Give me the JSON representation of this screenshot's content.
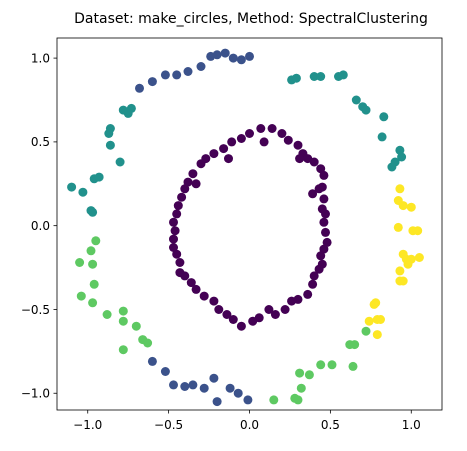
{
  "chart_data": {
    "type": "scatter",
    "title": "Dataset: make_circles, Method: SpectralClustering",
    "xlabel": "",
    "ylabel": "",
    "xlim": [
      -1.19,
      1.19
    ],
    "ylim": [
      -1.1,
      1.12
    ],
    "xticks": [
      -1.0,
      -0.5,
      0.0,
      0.5,
      1.0
    ],
    "xtick_labels": [
      "−1.0",
      "−0.5",
      "0.0",
      "0.5",
      "1.0"
    ],
    "yticks": [
      -1.0,
      -0.5,
      0.0,
      0.5,
      1.0
    ],
    "ytick_labels": [
      "−1.0",
      "−0.5",
      "0.0",
      "0.5",
      "1.0"
    ],
    "grid": false,
    "legend": "none",
    "series": [
      {
        "cluster": 0,
        "color": "#440154",
        "points": [
          [
            0.0,
            0.55
          ],
          [
            0.07,
            0.58
          ],
          [
            0.14,
            0.58
          ],
          [
            0.2,
            0.55
          ],
          [
            0.24,
            0.51
          ],
          [
            0.3,
            0.48
          ],
          [
            0.33,
            0.43
          ],
          [
            0.36,
            0.4
          ],
          [
            0.4,
            0.38
          ],
          [
            0.44,
            0.34
          ],
          [
            0.46,
            0.3
          ],
          [
            0.45,
            0.23
          ],
          [
            0.43,
            0.22
          ],
          [
            0.46,
            0.16
          ],
          [
            0.45,
            0.1
          ],
          [
            0.47,
            0.07
          ],
          [
            0.46,
            0.02
          ],
          [
            0.47,
            -0.04
          ],
          [
            0.48,
            -0.1
          ],
          [
            0.46,
            -0.14
          ],
          [
            0.44,
            -0.18
          ],
          [
            0.45,
            -0.23
          ],
          [
            0.43,
            -0.26
          ],
          [
            0.4,
            -0.3
          ],
          [
            0.39,
            -0.35
          ],
          [
            0.36,
            -0.41
          ],
          [
            0.3,
            -0.44
          ],
          [
            0.26,
            -0.45
          ],
          [
            0.22,
            -0.5
          ],
          [
            0.16,
            -0.53
          ],
          [
            0.12,
            -0.5
          ],
          [
            0.06,
            -0.55
          ],
          [
            0.02,
            -0.57
          ],
          [
            -0.05,
            -0.6
          ],
          [
            -0.1,
            -0.56
          ],
          [
            -0.14,
            -0.53
          ],
          [
            -0.19,
            -0.5
          ],
          [
            -0.22,
            -0.45
          ],
          [
            -0.28,
            -0.42
          ],
          [
            -0.33,
            -0.38
          ],
          [
            -0.36,
            -0.34
          ],
          [
            -0.4,
            -0.3
          ],
          [
            -0.43,
            -0.28
          ],
          [
            -0.43,
            -0.22
          ],
          [
            -0.45,
            -0.17
          ],
          [
            -0.47,
            -0.13
          ],
          [
            -0.47,
            -0.08
          ],
          [
            -0.46,
            -0.03
          ],
          [
            -0.47,
            0.02
          ],
          [
            -0.45,
            0.07
          ],
          [
            -0.44,
            0.12
          ],
          [
            -0.42,
            0.17
          ],
          [
            -0.4,
            0.22
          ],
          [
            -0.38,
            0.26
          ],
          [
            -0.35,
            0.31
          ],
          [
            -0.3,
            0.37
          ],
          [
            -0.27,
            0.4
          ],
          [
            -0.22,
            0.43
          ],
          [
            -0.16,
            0.46
          ],
          [
            -0.11,
            0.5
          ],
          [
            -0.05,
            0.52
          ],
          [
            -0.13,
            0.4
          ],
          [
            0.09,
            0.5
          ],
          [
            -0.33,
            0.25
          ],
          [
            0.31,
            0.4
          ],
          [
            0.39,
            0.19
          ]
        ]
      },
      {
        "cluster": 1,
        "color": "#3b528b",
        "points": [
          [
            -0.24,
            1.01
          ],
          [
            -0.2,
            1.02
          ],
          [
            -0.15,
            1.03
          ],
          [
            -0.1,
            1.0
          ],
          [
            -0.05,
            0.99
          ],
          [
            0.0,
            1.01
          ],
          [
            -0.3,
            0.95
          ],
          [
            -0.38,
            0.92
          ],
          [
            -0.45,
            0.9
          ],
          [
            -0.52,
            0.9
          ],
          [
            -0.6,
            0.86
          ],
          [
            -0.68,
            0.82
          ],
          [
            -0.52,
            -0.87
          ],
          [
            -0.6,
            -0.81
          ],
          [
            -0.47,
            -0.95
          ],
          [
            -0.4,
            -0.96
          ],
          [
            -0.35,
            -0.95
          ],
          [
            -0.28,
            -0.97
          ],
          [
            -0.22,
            -0.91
          ],
          [
            -0.2,
            -1.05
          ],
          [
            -0.12,
            -0.97
          ],
          [
            -0.07,
            -1.0
          ],
          [
            -0.01,
            -1.04
          ]
        ]
      },
      {
        "cluster": 2,
        "color": "#21918c",
        "points": [
          [
            0.26,
            0.87
          ],
          [
            0.29,
            0.88
          ],
          [
            0.4,
            0.89
          ],
          [
            0.44,
            0.89
          ],
          [
            0.55,
            0.89
          ],
          [
            0.58,
            0.9
          ],
          [
            0.66,
            0.75
          ],
          [
            0.7,
            0.71
          ],
          [
            0.72,
            0.69
          ],
          [
            0.83,
            0.65
          ],
          [
            0.82,
            0.53
          ],
          [
            0.93,
            0.45
          ],
          [
            0.94,
            0.41
          ],
          [
            0.9,
            0.38
          ],
          [
            0.88,
            0.35
          ],
          [
            -0.86,
            0.58
          ],
          [
            -0.87,
            0.55
          ],
          [
            -0.86,
            0.48
          ],
          [
            -0.8,
            0.38
          ],
          [
            -0.73,
            0.7
          ],
          [
            -0.75,
            0.67
          ],
          [
            -0.78,
            0.69
          ],
          [
            -1.03,
            0.2
          ],
          [
            -1.1,
            0.23
          ],
          [
            -0.96,
            0.28
          ],
          [
            -0.98,
            0.09
          ],
          [
            -0.97,
            0.08
          ],
          [
            -0.93,
            0.29
          ]
        ]
      },
      {
        "cluster": 3,
        "color": "#5ec962",
        "points": [
          [
            -1.05,
            -0.22
          ],
          [
            -0.98,
            -0.15
          ],
          [
            -0.97,
            -0.23
          ],
          [
            -0.95,
            -0.09
          ],
          [
            -1.04,
            -0.42
          ],
          [
            -0.97,
            -0.46
          ],
          [
            -0.96,
            -0.35
          ],
          [
            -0.88,
            -0.53
          ],
          [
            -0.78,
            -0.51
          ],
          [
            -0.78,
            -0.57
          ],
          [
            -0.7,
            -0.6
          ],
          [
            -0.66,
            -0.68
          ],
          [
            -0.63,
            -0.7
          ],
          [
            -0.78,
            -0.74
          ],
          [
            0.15,
            -1.04
          ],
          [
            0.28,
            -1.03
          ],
          [
            0.3,
            -1.04
          ],
          [
            0.32,
            -0.97
          ],
          [
            0.31,
            -0.88
          ],
          [
            0.37,
            -0.89
          ],
          [
            0.44,
            -0.83
          ],
          [
            0.51,
            -0.83
          ],
          [
            0.62,
            -0.71
          ],
          [
            0.65,
            -0.71
          ],
          [
            0.64,
            -0.84
          ],
          [
            0.72,
            -0.63
          ]
        ]
      },
      {
        "cluster": 4,
        "color": "#fde725",
        "points": [
          [
            0.93,
            0.22
          ],
          [
            0.92,
            0.15
          ],
          [
            0.95,
            0.12
          ],
          [
            1.0,
            0.11
          ],
          [
            1.01,
            -0.03
          ],
          [
            1.04,
            -0.03
          ],
          [
            0.92,
            -0.01
          ],
          [
            0.95,
            -0.17
          ],
          [
            0.97,
            -0.2
          ],
          [
            1.0,
            -0.2
          ],
          [
            1.05,
            -0.19
          ],
          [
            0.95,
            -0.33
          ],
          [
            0.98,
            -0.23
          ],
          [
            0.93,
            -0.27
          ],
          [
            0.93,
            -0.33
          ],
          [
            0.78,
            -0.46
          ],
          [
            0.77,
            -0.47
          ],
          [
            0.79,
            -0.56
          ],
          [
            0.81,
            -0.56
          ],
          [
            0.74,
            -0.57
          ],
          [
            0.79,
            -0.65
          ]
        ]
      }
    ]
  }
}
